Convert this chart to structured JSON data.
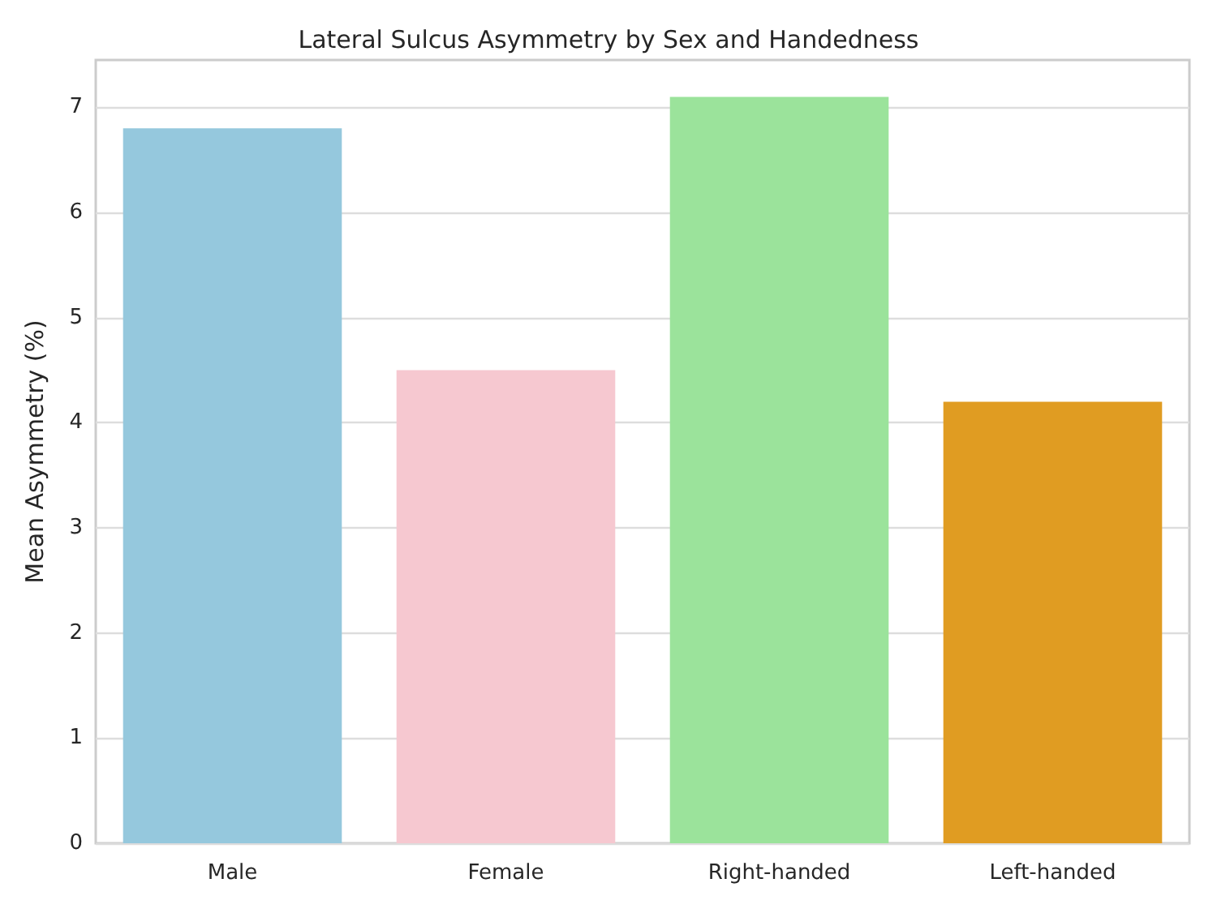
{
  "chart_data": {
    "type": "bar",
    "title": "Lateral Sulcus Asymmetry by Sex and Handedness",
    "ylabel": "Mean Asymmetry (%)",
    "categories": [
      "Male",
      "Female",
      "Right-handed",
      "Left-handed"
    ],
    "values": [
      6.8,
      4.5,
      7.1,
      4.2
    ],
    "colors": [
      "#95c8dd",
      "#f6c8d0",
      "#9be39b",
      "#e09c22"
    ],
    "ylim": [
      0,
      7.45
    ],
    "yticks": [
      0,
      1,
      2,
      3,
      4,
      5,
      6,
      7
    ],
    "grid": "y"
  }
}
